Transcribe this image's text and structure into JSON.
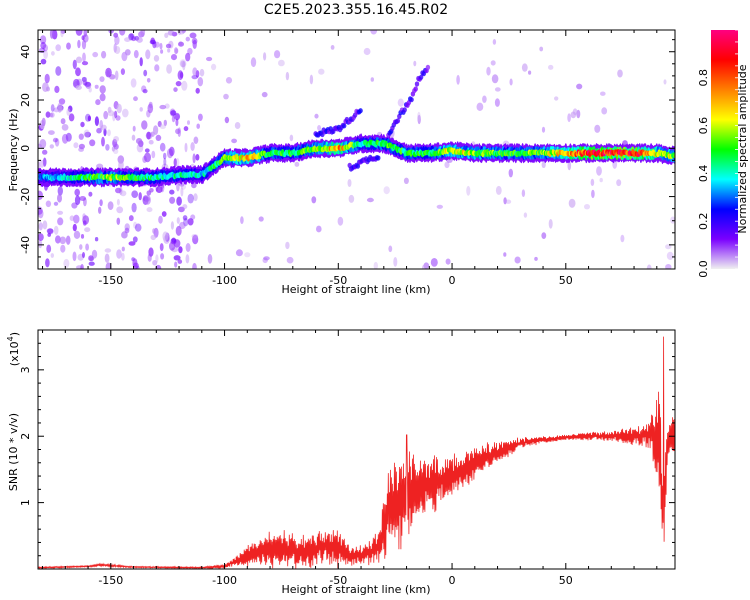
{
  "figure": {
    "title": "C2E5.2023.355.16.45.R02"
  },
  "chart_data": [
    {
      "type": "heatmap",
      "xlabel": "Height of straight line (km)",
      "ylabel": "Frequency (Hz)",
      "xlim": [
        -182,
        98
      ],
      "ylim": [
        -50,
        49
      ],
      "xticks": [
        -150,
        -100,
        -50,
        0,
        50
      ],
      "yticks": [
        -40,
        -20,
        0,
        20,
        40
      ],
      "colorbar": {
        "label": "Normalized spectral amplitude",
        "range": [
          0,
          1
        ],
        "ticks": [
          "0.0",
          "0.2",
          "0.4",
          "0.6",
          "0.8"
        ],
        "colors": [
          "#f0f0f0",
          "#7a00ff",
          "#0000ff",
          "#00ffff",
          "#00ff00",
          "#ffff00",
          "#ff8000",
          "#ff0000",
          "#ff0080"
        ]
      },
      "ridge": {
        "x": [
          -180,
          -170,
          -160,
          -150,
          -140,
          -130,
          -120,
          -110,
          -100,
          -90,
          -80,
          -70,
          -60,
          -50,
          -40,
          -30,
          -20,
          -10,
          0,
          10,
          20,
          30,
          40,
          50,
          60,
          70,
          80,
          90,
          96
        ],
        "y": [
          -12,
          -12,
          -12,
          -12,
          -12,
          -12,
          -11,
          -11,
          -4,
          -4,
          -2,
          -2,
          0,
          0,
          2,
          2,
          -2,
          -2,
          -1,
          -2,
          -2,
          -2,
          -2,
          -2,
          -2,
          -2,
          -2,
          -2,
          -3
        ],
        "amplitude": [
          0.35,
          0.4,
          0.5,
          0.6,
          0.5,
          0.45,
          0.45,
          0.4,
          0.55,
          0.75,
          0.5,
          0.5,
          0.6,
          0.8,
          0.45,
          0.55,
          0.5,
          0.5,
          0.7,
          0.6,
          0.55,
          0.55,
          0.6,
          0.75,
          0.95,
          0.95,
          0.95,
          0.7,
          0.6
        ]
      },
      "side_branches": [
        {
          "x": [
            -60,
            -50,
            -45,
            -40
          ],
          "y": [
            6,
            8,
            12,
            16
          ]
        },
        {
          "x": [
            -28,
            -22,
            -18,
            -15,
            -10
          ],
          "y": [
            6,
            15,
            20,
            28,
            34
          ]
        },
        {
          "x": [
            -45,
            -38,
            -32
          ],
          "y": [
            -8,
            -5,
            -3
          ]
        }
      ]
    },
    {
      "type": "line",
      "xlabel": "Height of straight line (km)",
      "ylabel": "SNR (10 * v/v)",
      "scale_label": "(x10",
      "scale_exponent": "4",
      "scale_suffix": ")",
      "xlim": [
        -182,
        98
      ],
      "ylim": [
        0,
        3.6
      ],
      "xticks": [
        -150,
        -100,
        -50,
        0,
        50
      ],
      "yticks": [
        1,
        2,
        3
      ],
      "series": [
        {
          "color": "#ee2222",
          "envelope": {
            "x": [
              -182,
              -160,
              -155,
              -140,
              -110,
              -100,
              -95,
              -90,
              -85,
              -80,
              -75,
              -70,
              -65,
              -60,
              -55,
              -50,
              -45,
              -40,
              -35,
              -32,
              -30,
              -28,
              -25,
              -22,
              -20,
              -18,
              -15,
              -10,
              -5,
              0,
              5,
              10,
              15,
              20,
              25,
              30,
              40,
              50,
              60,
              70,
              80,
              85,
              88,
              90,
              91,
              92,
              93,
              94,
              95,
              96
            ],
            "mean": [
              0.02,
              0.04,
              0.06,
              0.03,
              0.02,
              0.04,
              0.12,
              0.18,
              0.25,
              0.3,
              0.32,
              0.28,
              0.25,
              0.3,
              0.35,
              0.3,
              0.2,
              0.2,
              0.28,
              0.35,
              0.6,
              0.9,
              1.0,
              1.05,
              1.1,
              1.15,
              1.2,
              1.25,
              1.3,
              1.4,
              1.5,
              1.6,
              1.7,
              1.75,
              1.82,
              1.9,
              1.95,
              1.98,
              2.0,
              2.0,
              2.0,
              2.02,
              2.05,
              2.0,
              1.8,
              1.3,
              0.7,
              1.5,
              1.9,
              2.0
            ],
            "amp": [
              0.01,
              0.01,
              0.02,
              0.01,
              0.01,
              0.03,
              0.08,
              0.15,
              0.2,
              0.25,
              0.28,
              0.25,
              0.22,
              0.25,
              0.3,
              0.25,
              0.15,
              0.15,
              0.2,
              0.3,
              0.45,
              0.55,
              0.6,
              0.7,
              0.6,
              0.55,
              0.45,
              0.4,
              0.35,
              0.3,
              0.25,
              0.22,
              0.2,
              0.15,
              0.12,
              0.08,
              0.05,
              0.04,
              0.06,
              0.08,
              0.12,
              0.2,
              0.35,
              0.6,
              0.9,
              0.8,
              0.5,
              0.7,
              0.4,
              0.3
            ]
          },
          "peaks": [
            {
              "x": -20,
              "y": 2.02
            },
            {
              "x": 93,
              "y": 3.5
            }
          ]
        }
      ]
    }
  ]
}
